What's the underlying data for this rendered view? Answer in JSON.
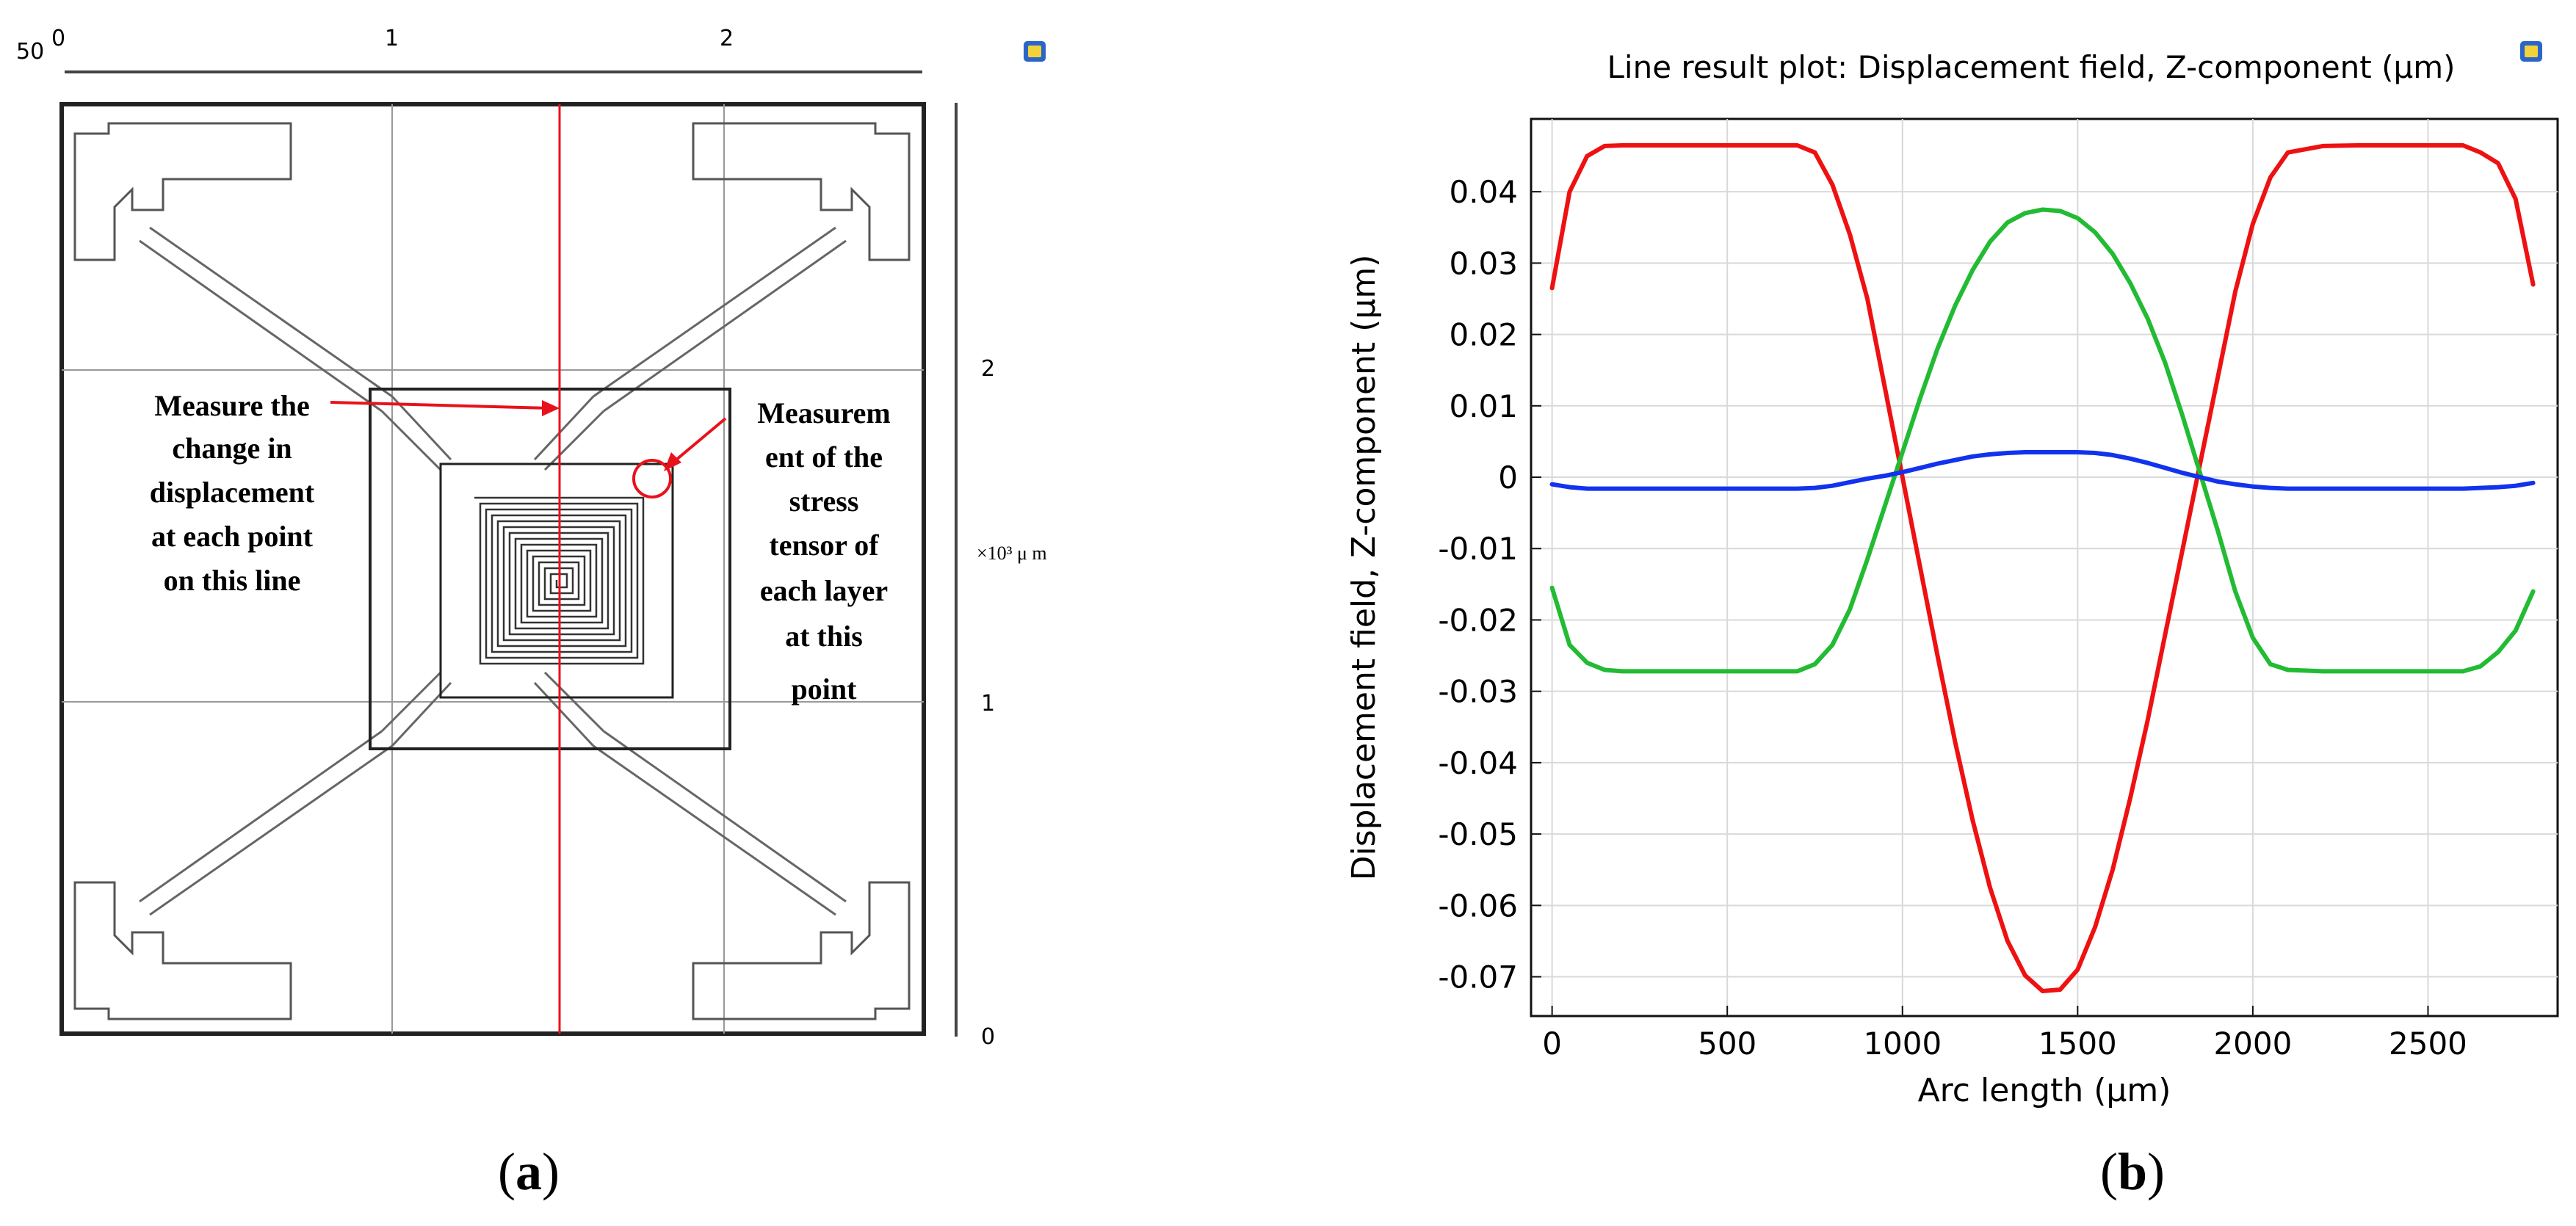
{
  "panel_a": {
    "label_prefix": "(",
    "label_letter": "a",
    "label_suffix": ")",
    "top_ruler_labels": [
      "50",
      "0",
      "1",
      "2"
    ],
    "right_ruler_labels": [
      "2",
      "1",
      "0"
    ],
    "right_ruler_unit": "×10³ μ m",
    "annotation_left": [
      "Measure the",
      "change in",
      "displacement",
      "at each point",
      "on this line"
    ],
    "annotation_right": [
      "Measurem",
      "ent of the",
      "stress",
      "tensor of",
      "each layer",
      "at this",
      "point"
    ],
    "colors": {
      "measure_line": "#e8121a",
      "outline": "#555555"
    }
  },
  "panel_b": {
    "label_prefix": "(",
    "label_letter": "b",
    "label_suffix": ")"
  },
  "chart_data": {
    "type": "line",
    "title": "Line result plot: Displacement field, Z-component (μm)",
    "xlabel": "Arc length (μm)",
    "ylabel": "Displacement field, Z-component (μm)",
    "xlim": [
      -60,
      2870
    ],
    "ylim": [
      -0.0755,
      0.0502
    ],
    "x_ticks": [
      0,
      500,
      1000,
      1500,
      2000,
      2500
    ],
    "x_tick_labels": [
      "0",
      "500",
      "1000",
      "1500",
      "2000",
      "2500"
    ],
    "y_ticks": [
      0.04,
      0.03,
      0.02,
      0.01,
      0,
      -0.01,
      -0.02,
      -0.03,
      -0.04,
      -0.05,
      -0.06,
      -0.07
    ],
    "y_tick_labels": [
      "0.04",
      "0.03",
      "0.02",
      "0.01",
      "0",
      "-0.01",
      "-0.02",
      "-0.03",
      "-0.04",
      "-0.05",
      "-0.06",
      "-0.07"
    ],
    "grid": true,
    "x": [
      0,
      50,
      100,
      150,
      200,
      300,
      400,
      500,
      600,
      700,
      750,
      800,
      850,
      900,
      950,
      1000,
      1050,
      1100,
      1150,
      1200,
      1250,
      1300,
      1350,
      1400,
      1450,
      1500,
      1550,
      1600,
      1650,
      1700,
      1750,
      1800,
      1850,
      1900,
      1950,
      2000,
      2050,
      2100,
      2200,
      2300,
      2400,
      2500,
      2600,
      2650,
      2700,
      2750,
      2800
    ],
    "series": [
      {
        "name": "red",
        "color": "#ee1111",
        "values": [
          0.0265,
          0.04,
          0.045,
          0.0464,
          0.0465,
          0.0465,
          0.0465,
          0.0465,
          0.0465,
          0.0465,
          0.0455,
          0.041,
          0.034,
          0.025,
          0.0125,
          0.0,
          -0.0125,
          -0.025,
          -0.037,
          -0.048,
          -0.0575,
          -0.065,
          -0.0698,
          -0.072,
          -0.0718,
          -0.069,
          -0.063,
          -0.055,
          -0.045,
          -0.034,
          -0.022,
          -0.01,
          0.002,
          0.014,
          0.026,
          0.0355,
          0.042,
          0.0455,
          0.0464,
          0.0465,
          0.0465,
          0.0465,
          0.0465,
          0.0455,
          0.044,
          0.039,
          0.027
        ]
      },
      {
        "name": "green",
        "color": "#22bb33",
        "values": [
          -0.0155,
          -0.0235,
          -0.026,
          -0.027,
          -0.0272,
          -0.0272,
          -0.0272,
          -0.0272,
          -0.0272,
          -0.0272,
          -0.0262,
          -0.0235,
          -0.0185,
          -0.0115,
          -0.004,
          0.0035,
          0.011,
          0.018,
          0.024,
          0.029,
          0.033,
          0.0357,
          0.037,
          0.0375,
          0.0373,
          0.0363,
          0.0343,
          0.0313,
          0.0272,
          0.0222,
          0.016,
          0.0085,
          0.0005,
          -0.0075,
          -0.016,
          -0.0225,
          -0.0262,
          -0.027,
          -0.0272,
          -0.0272,
          -0.0272,
          -0.0272,
          -0.0272,
          -0.0265,
          -0.0245,
          -0.0215,
          -0.016
        ]
      },
      {
        "name": "blue",
        "color": "#1133ee",
        "values": [
          -0.001,
          -0.0014,
          -0.0016,
          -0.0016,
          -0.0016,
          -0.0016,
          -0.0016,
          -0.0016,
          -0.0016,
          -0.0016,
          -0.0015,
          -0.0012,
          -0.0007,
          -0.0002,
          0.0002,
          0.0007,
          0.0013,
          0.0019,
          0.0024,
          0.0029,
          0.0032,
          0.0034,
          0.0035,
          0.0035,
          0.0035,
          0.0035,
          0.0034,
          0.0031,
          0.0026,
          0.002,
          0.0013,
          0.0006,
          0.0,
          -0.0006,
          -0.001,
          -0.0013,
          -0.0015,
          -0.0016,
          -0.0016,
          -0.0016,
          -0.0016,
          -0.0016,
          -0.0016,
          -0.0015,
          -0.0014,
          -0.0012,
          -0.0008
        ]
      }
    ]
  }
}
